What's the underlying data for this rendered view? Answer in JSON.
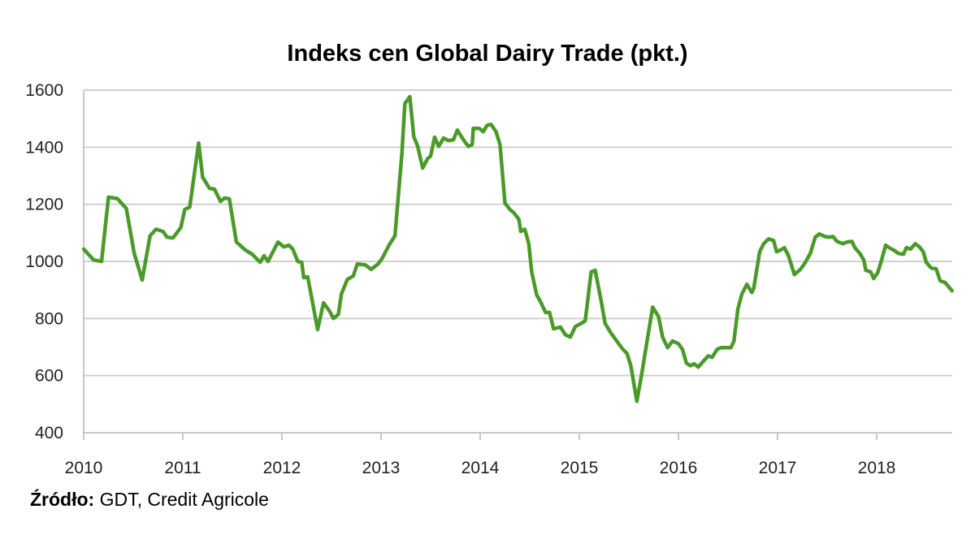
{
  "chart_data": {
    "type": "line",
    "title": "Indeks cen Global Dairy Trade (pkt.)",
    "xlabel": "",
    "ylabel": "",
    "xlim": [
      2010,
      2018.76
    ],
    "ylim": [
      400,
      1600
    ],
    "yticks": [
      400,
      600,
      800,
      1000,
      1200,
      1400,
      1600
    ],
    "xticks": [
      2010,
      2011,
      2012,
      2013,
      2014,
      2015,
      2016,
      2017,
      2018
    ],
    "grid": "horizontal",
    "legend": "none",
    "series": [
      {
        "name": "Indeks cen Global Dairy Trade",
        "color": "#4a9a2a",
        "points": [
          [
            2010.0,
            1043
          ],
          [
            2010.1,
            1005
          ],
          [
            2010.18,
            1000
          ],
          [
            2010.25,
            1225
          ],
          [
            2010.34,
            1220
          ],
          [
            2010.43,
            1185
          ],
          [
            2010.51,
            1028
          ],
          [
            2010.59,
            935
          ],
          [
            2010.67,
            1090
          ],
          [
            2010.73,
            1113
          ],
          [
            2010.8,
            1105
          ],
          [
            2010.84,
            1085
          ],
          [
            2010.9,
            1082
          ],
          [
            2010.98,
            1119
          ],
          [
            2011.02,
            1182
          ],
          [
            2011.07,
            1190
          ],
          [
            2011.16,
            1415
          ],
          [
            2011.2,
            1295
          ],
          [
            2011.27,
            1256
          ],
          [
            2011.32,
            1253
          ],
          [
            2011.38,
            1210
          ],
          [
            2011.42,
            1222
          ],
          [
            2011.47,
            1219
          ],
          [
            2011.54,
            1068
          ],
          [
            2011.63,
            1040
          ],
          [
            2011.7,
            1025
          ],
          [
            2011.78,
            997
          ],
          [
            2011.82,
            1020
          ],
          [
            2011.86,
            1000
          ],
          [
            2011.96,
            1068
          ],
          [
            2012.02,
            1051
          ],
          [
            2012.07,
            1057
          ],
          [
            2012.11,
            1043
          ],
          [
            2012.16,
            1000
          ],
          [
            2012.2,
            997
          ],
          [
            2012.22,
            943
          ],
          [
            2012.26,
            946
          ],
          [
            2012.31,
            855
          ],
          [
            2012.36,
            761
          ],
          [
            2012.42,
            855
          ],
          [
            2012.48,
            826
          ],
          [
            2012.52,
            800
          ],
          [
            2012.57,
            815
          ],
          [
            2012.6,
            886
          ],
          [
            2012.66,
            937
          ],
          [
            2012.72,
            949
          ],
          [
            2012.76,
            991
          ],
          [
            2012.84,
            988
          ],
          [
            2012.9,
            972
          ],
          [
            2012.97,
            991
          ],
          [
            2013.01,
            1010
          ],
          [
            2013.08,
            1057
          ],
          [
            2013.14,
            1090
          ],
          [
            2013.21,
            1375
          ],
          [
            2013.24,
            1553
          ],
          [
            2013.29,
            1577
          ],
          [
            2013.33,
            1437
          ],
          [
            2013.37,
            1403
          ],
          [
            2013.42,
            1327
          ],
          [
            2013.47,
            1360
          ],
          [
            2013.5,
            1369
          ],
          [
            2013.54,
            1435
          ],
          [
            2013.58,
            1403
          ],
          [
            2013.63,
            1432
          ],
          [
            2013.68,
            1423
          ],
          [
            2013.73,
            1426
          ],
          [
            2013.77,
            1460
          ],
          [
            2013.83,
            1426
          ],
          [
            2013.88,
            1403
          ],
          [
            2013.92,
            1409
          ],
          [
            2013.93,
            1466
          ],
          [
            2013.99,
            1466
          ],
          [
            2014.03,
            1454
          ],
          [
            2014.07,
            1477
          ],
          [
            2014.11,
            1480
          ],
          [
            2014.16,
            1454
          ],
          [
            2014.2,
            1409
          ],
          [
            2014.25,
            1204
          ],
          [
            2014.3,
            1182
          ],
          [
            2014.34,
            1170
          ],
          [
            2014.39,
            1148
          ],
          [
            2014.41,
            1105
          ],
          [
            2014.45,
            1113
          ],
          [
            2014.49,
            1062
          ],
          [
            2014.52,
            963
          ],
          [
            2014.57,
            883
          ],
          [
            2014.61,
            858
          ],
          [
            2014.66,
            821
          ],
          [
            2014.7,
            821
          ],
          [
            2014.74,
            764
          ],
          [
            2014.81,
            770
          ],
          [
            2014.86,
            743
          ],
          [
            2014.91,
            735
          ],
          [
            2014.96,
            772
          ],
          [
            2015.02,
            783
          ],
          [
            2015.06,
            792
          ],
          [
            2015.12,
            963
          ],
          [
            2015.16,
            969
          ],
          [
            2015.22,
            863
          ],
          [
            2015.26,
            783
          ],
          [
            2015.32,
            749
          ],
          [
            2015.39,
            715
          ],
          [
            2015.44,
            692
          ],
          [
            2015.48,
            678
          ],
          [
            2015.52,
            635
          ],
          [
            2015.58,
            510
          ],
          [
            2015.63,
            607
          ],
          [
            2015.69,
            735
          ],
          [
            2015.74,
            840
          ],
          [
            2015.8,
            806
          ],
          [
            2015.84,
            735
          ],
          [
            2015.89,
            698
          ],
          [
            2015.94,
            721
          ],
          [
            2016.0,
            712
          ],
          [
            2016.04,
            692
          ],
          [
            2016.08,
            644
          ],
          [
            2016.12,
            635
          ],
          [
            2016.16,
            641
          ],
          [
            2016.2,
            630
          ],
          [
            2016.25,
            650
          ],
          [
            2016.3,
            669
          ],
          [
            2016.34,
            664
          ],
          [
            2016.39,
            692
          ],
          [
            2016.43,
            698
          ],
          [
            2016.53,
            698
          ],
          [
            2016.56,
            721
          ],
          [
            2016.6,
            834
          ],
          [
            2016.64,
            886
          ],
          [
            2016.69,
            920
          ],
          [
            2016.74,
            891
          ],
          [
            2016.76,
            906
          ],
          [
            2016.82,
            1034
          ],
          [
            2016.86,
            1062
          ],
          [
            2016.91,
            1079
          ],
          [
            2016.96,
            1073
          ],
          [
            2016.99,
            1034
          ],
          [
            2017.03,
            1040
          ],
          [
            2017.07,
            1048
          ],
          [
            2017.11,
            1020
          ],
          [
            2017.17,
            954
          ],
          [
            2017.23,
            972
          ],
          [
            2017.27,
            991
          ],
          [
            2017.33,
            1028
          ],
          [
            2017.38,
            1085
          ],
          [
            2017.42,
            1096
          ],
          [
            2017.48,
            1087
          ],
          [
            2017.52,
            1085
          ],
          [
            2017.56,
            1087
          ],
          [
            2017.6,
            1070
          ],
          [
            2017.66,
            1062
          ],
          [
            2017.7,
            1068
          ],
          [
            2017.75,
            1070
          ],
          [
            2017.78,
            1048
          ],
          [
            2017.83,
            1028
          ],
          [
            2017.87,
            1005
          ],
          [
            2017.89,
            969
          ],
          [
            2017.94,
            963
          ],
          [
            2017.97,
            940
          ],
          [
            2018.01,
            960
          ],
          [
            2018.05,
            1005
          ],
          [
            2018.09,
            1057
          ],
          [
            2018.14,
            1045
          ],
          [
            2018.17,
            1040
          ],
          [
            2018.22,
            1028
          ],
          [
            2018.27,
            1025
          ],
          [
            2018.3,
            1048
          ],
          [
            2018.34,
            1043
          ],
          [
            2018.39,
            1062
          ],
          [
            2018.43,
            1051
          ],
          [
            2018.47,
            1034
          ],
          [
            2018.5,
            997
          ],
          [
            2018.55,
            977
          ],
          [
            2018.6,
            974
          ],
          [
            2018.64,
            932
          ],
          [
            2018.69,
            926
          ],
          [
            2018.76,
            897
          ]
        ]
      }
    ],
    "source_label": "Źródło:",
    "source_text": "GDT, Credit Agricole"
  }
}
